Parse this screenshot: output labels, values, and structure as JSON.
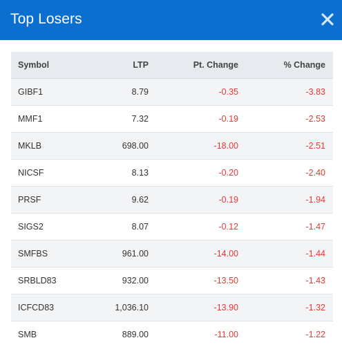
{
  "modal": {
    "title": "Top Losers",
    "close_icon": "close-icon",
    "colors": {
      "header_bg": "#0a6fcf",
      "negative": "#e53935"
    }
  },
  "table": {
    "headers": {
      "symbol": "Symbol",
      "ltp": "LTP",
      "pt_change": "Pt. Change",
      "pct_change": "% Change"
    },
    "rows": [
      {
        "symbol": "GIBF1",
        "ltp": "8.79",
        "pt_change": "-0.35",
        "pct_change": "-3.83"
      },
      {
        "symbol": "MMF1",
        "ltp": "7.32",
        "pt_change": "-0.19",
        "pct_change": "-2.53"
      },
      {
        "symbol": "MKLB",
        "ltp": "698.00",
        "pt_change": "-18.00",
        "pct_change": "-2.51"
      },
      {
        "symbol": "NICSF",
        "ltp": "8.13",
        "pt_change": "-0.20",
        "pct_change": "-2.40"
      },
      {
        "symbol": "PRSF",
        "ltp": "9.62",
        "pt_change": "-0.19",
        "pct_change": "-1.94"
      },
      {
        "symbol": "SIGS2",
        "ltp": "8.07",
        "pt_change": "-0.12",
        "pct_change": "-1.47"
      },
      {
        "symbol": "SMFBS",
        "ltp": "961.00",
        "pt_change": "-14.00",
        "pct_change": "-1.44"
      },
      {
        "symbol": "SRBLD83",
        "ltp": "932.00",
        "pt_change": "-13.50",
        "pct_change": "-1.43"
      },
      {
        "symbol": "ICFCD83",
        "ltp": "1,036.10",
        "pt_change": "-13.90",
        "pct_change": "-1.32"
      },
      {
        "symbol": "SMB",
        "ltp": "889.00",
        "pt_change": "-11.00",
        "pct_change": "-1.22"
      }
    ]
  }
}
